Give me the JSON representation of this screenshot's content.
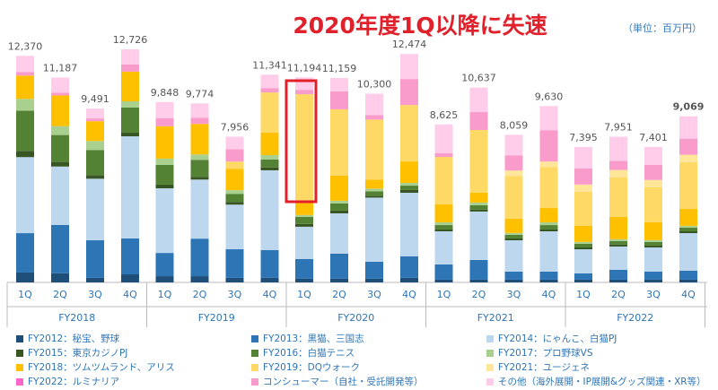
{
  "chart_data": {
    "type": "stacked_bar",
    "title": "2020年度1Q以降に失速",
    "unit_label": "（単位：百万円）",
    "categories": [
      "1Q",
      "2Q",
      "3Q",
      "4Q",
      "1Q",
      "2Q",
      "3Q",
      "4Q",
      "1Q",
      "2Q",
      "3Q",
      "4Q",
      "1Q",
      "2Q",
      "3Q",
      "4Q",
      "1Q",
      "2Q",
      "3Q",
      "4Q"
    ],
    "groups": [
      "FY2018",
      "FY2019",
      "FY2020",
      "FY2021",
      "FY2022"
    ],
    "totals": [
      12370,
      11187,
      9491,
      12726,
      9848,
      9774,
      7956,
      11341,
      11194,
      11159,
      10300,
      12474,
      8625,
      10637,
      8059,
      9630,
      7395,
      7951,
      7401,
      9069
    ],
    "total_labels": [
      "12,370",
      "11,187",
      "9,491",
      "12,726",
      "9,848",
      "9,774",
      "7,956",
      "11,341",
      "11,194",
      "11,159",
      "10,300",
      "12,474",
      "8,625",
      "10,637",
      "8,059",
      "9,630",
      "7,395",
      "7,951",
      "7,401",
      "9,069"
    ],
    "series": [
      {
        "name": "FY2012：秘宝、野球",
        "color": "#1f4e79",
        "values": [
          540,
          500,
          250,
          440,
          340,
          340,
          250,
          250,
          200,
          200,
          200,
          250,
          150,
          150,
          150,
          150,
          150,
          150,
          150,
          150
        ]
      },
      {
        "name": "FY2013：黒猫、三国志",
        "color": "#2e75b6",
        "values": [
          2150,
          2640,
          2050,
          1960,
          1270,
          2050,
          1560,
          1520,
          1080,
          1370,
          930,
          1170,
          830,
          1080,
          440,
          440,
          340,
          540,
          440,
          490
        ]
      },
      {
        "name": "FY2014：にゃんこ、白猫PJ",
        "color": "#bdd7ee",
        "values": [
          4150,
          3187,
          3361,
          5576,
          3528,
          3224,
          2436,
          4351,
          1760,
          2200,
          3500,
          3474,
          1810,
          2640,
          1710,
          2200,
          1320,
          1270,
          1320,
          2050
        ]
      },
      {
        "name": "FY2015：東京カジノPJ",
        "color": "#375623",
        "values": [
          340,
          250,
          200,
          200,
          200,
          150,
          150,
          150,
          150,
          150,
          100,
          150,
          100,
          100,
          100,
          100,
          100,
          100,
          100,
          100
        ]
      },
      {
        "name": "FY2016：白猫テニス",
        "color": "#548235",
        "values": [
          2200,
          1470,
          1370,
          1370,
          1080,
          930,
          440,
          440,
          390,
          390,
          240,
          240,
          240,
          240,
          200,
          240,
          200,
          200,
          200,
          200
        ]
      },
      {
        "name": "FY2017：プロ野球VS",
        "color": "#a9d08e",
        "values": [
          640,
          490,
          490,
          340,
          340,
          290,
          200,
          240,
          100,
          150,
          150,
          150,
          150,
          150,
          100,
          150,
          100,
          100,
          100,
          100
        ]
      },
      {
        "name": "FY2018：ツムツムランド、アリス",
        "color": "#ffc000",
        "values": [
          1270,
          1670,
          1080,
          1620,
          1770,
          1670,
          1170,
          1220,
          730,
          1370,
          490,
          1170,
          980,
          540,
          780,
          780,
          880,
          1220,
          980,
          930
        ]
      },
      {
        "name": "FY2019：DQウォーク",
        "color": "#ffd966",
        "values": [
          0,
          0,
          0,
          0,
          0,
          0,
          390,
          2200,
          5864,
          3619,
          3280,
          3080,
          2590,
          3420,
          2329,
          2240,
          1855,
          2161,
          1901,
          2549
        ]
      },
      {
        "name": "FY2021：ユージェネ",
        "color": "#ffe699",
        "values": [
          0,
          0,
          0,
          0,
          0,
          0,
          0,
          0,
          0,
          0,
          0,
          0,
          0,
          0,
          300,
          300,
          400,
          400,
          400,
          400
        ]
      },
      {
        "name": "FY2022：ルミナリア",
        "color": "#ff66cc",
        "values": [
          0,
          0,
          0,
          0,
          0,
          0,
          0,
          0,
          0,
          0,
          0,
          0,
          0,
          0,
          0,
          0,
          0,
          0,
          0,
          0
        ]
      },
      {
        "name": "コンシューマー（自社・受託開発等）",
        "color": "#f99ccc",
        "values": [
          200,
          150,
          150,
          390,
          440,
          340,
          680,
          240,
          240,
          980,
          240,
          1420,
          200,
          980,
          830,
          1710,
          880,
          490,
          830,
          880
        ]
      },
      {
        "name": "その他（海外展開・IP展開&グッズ関連・XR等）",
        "color": "#ffccea",
        "values": [
          880,
          830,
          540,
          830,
          880,
          780,
          680,
          730,
          680,
          730,
          1170,
          1370,
          1575,
          1337,
          1120,
          1320,
          1170,
          1320,
          980,
          1220
        ]
      }
    ]
  }
}
